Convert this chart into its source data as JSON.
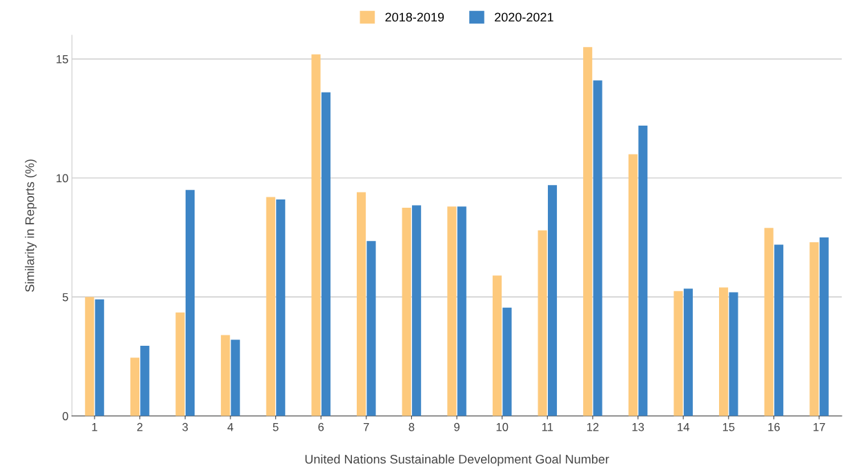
{
  "chart_data": {
    "type": "bar",
    "xlabel": "United Nations Sustainable Development Goal Number",
    "ylabel": "Similarity in Reports (%)",
    "categories": [
      "1",
      "2",
      "3",
      "4",
      "5",
      "6",
      "7",
      "8",
      "9",
      "10",
      "11",
      "12",
      "13",
      "14",
      "15",
      "16",
      "17"
    ],
    "series": [
      {
        "name": "2018-2019",
        "color": "#fdc97c",
        "values": [
          5.0,
          2.45,
          4.35,
          3.4,
          9.2,
          15.2,
          9.4,
          8.75,
          8.8,
          5.9,
          7.8,
          15.5,
          11.0,
          5.25,
          5.4,
          7.9,
          7.3
        ]
      },
      {
        "name": "2020-2021",
        "color": "#3d85c6",
        "values": [
          4.9,
          2.95,
          9.5,
          3.2,
          9.1,
          13.6,
          7.35,
          8.85,
          8.8,
          4.55,
          9.7,
          14.1,
          12.2,
          5.35,
          5.2,
          7.2,
          7.5
        ]
      }
    ],
    "ylim": [
      0,
      16
    ],
    "yticks": [
      0,
      5,
      10,
      15
    ],
    "grid": "y",
    "legend": "top"
  }
}
